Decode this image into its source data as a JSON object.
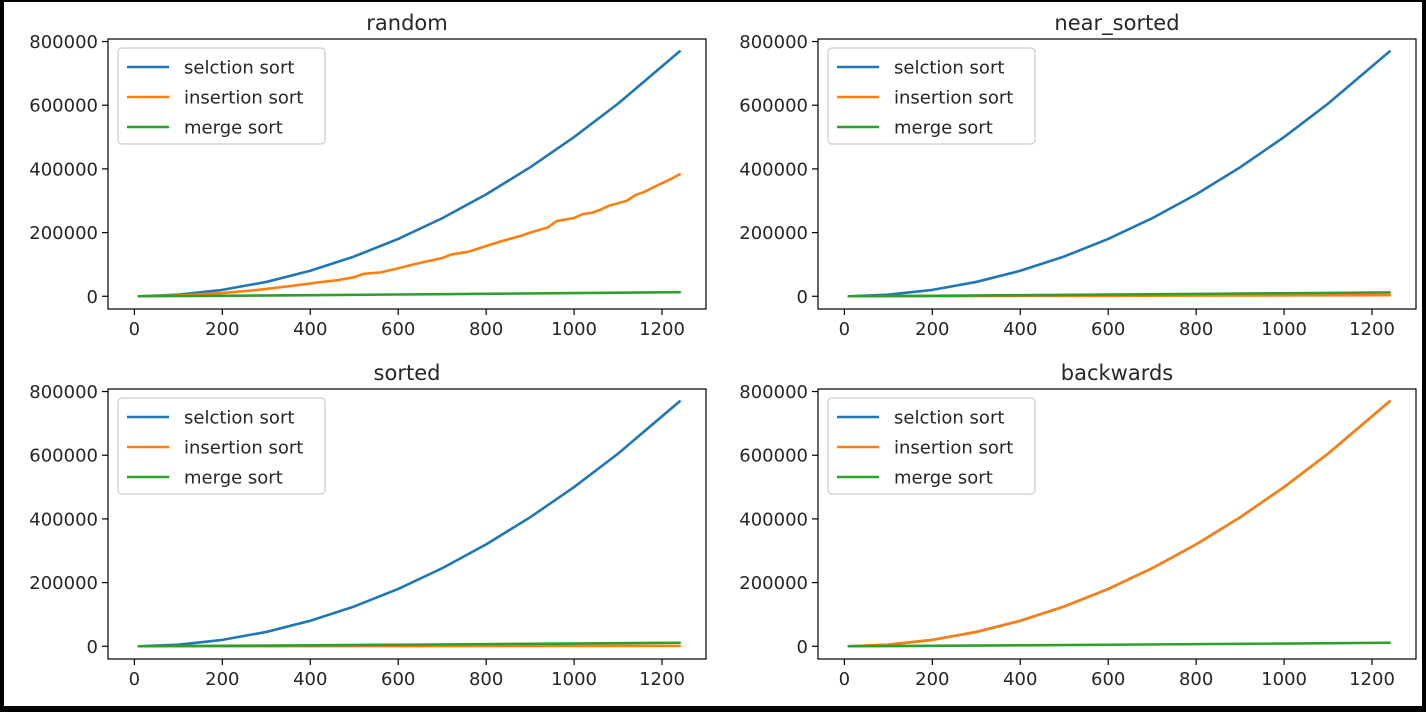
{
  "figure": {
    "layout": "2x2 grid of line charts"
  },
  "chart_data": [
    {
      "type": "line",
      "title": "random",
      "xlabel": "",
      "ylabel": "",
      "xlim": [
        -60,
        1300
      ],
      "ylim": [
        -40000,
        808000
      ],
      "xticks": [
        0,
        200,
        400,
        600,
        800,
        1000,
        1200
      ],
      "yticks": [
        0,
        200000,
        400000,
        600000,
        800000
      ],
      "legend": {
        "placement": "upper-left"
      },
      "grid": false,
      "series": [
        {
          "name": "selction sort",
          "color": "#1f77b4",
          "x": [
            10,
            100,
            200,
            300,
            400,
            500,
            600,
            700,
            800,
            900,
            1000,
            1100,
            1240
          ],
          "y": [
            50,
            5000,
            20000,
            45000,
            80000,
            125000,
            180000,
            245000,
            320000,
            405000,
            500000,
            605000,
            769000
          ]
        },
        {
          "name": "insertion sort",
          "color": "#ff7f0e",
          "x": [
            10,
            100,
            200,
            260,
            300,
            360,
            400,
            420,
            460,
            500,
            520,
            560,
            600,
            620,
            660,
            700,
            720,
            760,
            800,
            840,
            880,
            900,
            940,
            960,
            1000,
            1020,
            1040,
            1060,
            1080,
            1100,
            1120,
            1140,
            1160,
            1180,
            1200,
            1220,
            1240
          ],
          "y": [
            50,
            2500,
            10000,
            17000,
            23000,
            33000,
            40000,
            44000,
            50000,
            60000,
            70000,
            75000,
            88000,
            95000,
            108000,
            120000,
            131000,
            140000,
            158000,
            175000,
            190000,
            200000,
            216000,
            236000,
            246000,
            258000,
            262000,
            272000,
            285000,
            292000,
            300000,
            318000,
            328000,
            342000,
            355000,
            368000,
            383000
          ]
        },
        {
          "name": "merge sort",
          "color": "#2ca02c",
          "x": [
            10,
            200,
            400,
            600,
            800,
            1000,
            1240
          ],
          "y": [
            30,
            1500,
            3500,
            5500,
            7700,
            9900,
            12700
          ]
        }
      ]
    },
    {
      "type": "line",
      "title": "near_sorted",
      "xlabel": "",
      "ylabel": "",
      "xlim": [
        -60,
        1300
      ],
      "ylim": [
        -40000,
        808000
      ],
      "xticks": [
        0,
        200,
        400,
        600,
        800,
        1000,
        1200
      ],
      "yticks": [
        0,
        200000,
        400000,
        600000,
        800000
      ],
      "legend": {
        "placement": "upper-left"
      },
      "grid": false,
      "series": [
        {
          "name": "selction sort",
          "color": "#1f77b4",
          "x": [
            10,
            100,
            200,
            300,
            400,
            500,
            600,
            700,
            800,
            900,
            1000,
            1100,
            1240
          ],
          "y": [
            50,
            5000,
            20000,
            45000,
            80000,
            125000,
            180000,
            245000,
            320000,
            405000,
            500000,
            605000,
            769000
          ]
        },
        {
          "name": "insertion sort",
          "color": "#ff7f0e",
          "x": [
            10,
            400,
            800,
            1240
          ],
          "y": [
            20,
            1000,
            2200,
            3500
          ]
        },
        {
          "name": "merge sort",
          "color": "#2ca02c",
          "x": [
            10,
            200,
            400,
            600,
            800,
            1000,
            1240
          ],
          "y": [
            30,
            1400,
            3300,
            5300,
            7400,
            9500,
            12000
          ]
        }
      ]
    },
    {
      "type": "line",
      "title": "sorted",
      "xlabel": "",
      "ylabel": "",
      "xlim": [
        -60,
        1300
      ],
      "ylim": [
        -40000,
        808000
      ],
      "xticks": [
        0,
        200,
        400,
        600,
        800,
        1000,
        1200
      ],
      "yticks": [
        0,
        200000,
        400000,
        600000,
        800000
      ],
      "legend": {
        "placement": "upper-left"
      },
      "grid": false,
      "series": [
        {
          "name": "selction sort",
          "color": "#1f77b4",
          "x": [
            10,
            100,
            200,
            300,
            400,
            500,
            600,
            700,
            800,
            900,
            1000,
            1100,
            1240
          ],
          "y": [
            50,
            5000,
            20000,
            45000,
            80000,
            125000,
            180000,
            245000,
            320000,
            405000,
            500000,
            605000,
            769000
          ]
        },
        {
          "name": "insertion sort",
          "color": "#ff7f0e",
          "x": [
            10,
            600,
            1240
          ],
          "y": [
            10,
            600,
            1240
          ]
        },
        {
          "name": "merge sort",
          "color": "#2ca02c",
          "x": [
            10,
            200,
            400,
            600,
            800,
            1000,
            1240
          ],
          "y": [
            30,
            1300,
            3000,
            4800,
            6700,
            8600,
            11000
          ]
        }
      ]
    },
    {
      "type": "line",
      "title": "backwards",
      "xlabel": "",
      "ylabel": "",
      "xlim": [
        -60,
        1300
      ],
      "ylim": [
        -40000,
        808000
      ],
      "xticks": [
        0,
        200,
        400,
        600,
        800,
        1000,
        1200
      ],
      "yticks": [
        0,
        200000,
        400000,
        600000,
        800000
      ],
      "legend": {
        "placement": "upper-left"
      },
      "grid": false,
      "series": [
        {
          "name": "selction sort",
          "color": "#1f77b4",
          "x": [
            10,
            100,
            200,
            300,
            400,
            500,
            600,
            700,
            800,
            900,
            1000,
            1100,
            1240
          ],
          "y": [
            50,
            5000,
            20000,
            45000,
            80000,
            125000,
            180000,
            245000,
            320000,
            405000,
            500000,
            605000,
            769000
          ]
        },
        {
          "name": "insertion sort",
          "color": "#ff7f0e",
          "x": [
            10,
            100,
            200,
            300,
            400,
            500,
            600,
            700,
            800,
            900,
            1000,
            1100,
            1240
          ],
          "y": [
            50,
            5000,
            20000,
            45000,
            80000,
            125000,
            180000,
            245000,
            320000,
            405000,
            500000,
            605000,
            769000
          ]
        },
        {
          "name": "merge sort",
          "color": "#2ca02c",
          "x": [
            10,
            200,
            400,
            600,
            800,
            1000,
            1240
          ],
          "y": [
            30,
            1300,
            3000,
            4800,
            6700,
            8600,
            11000
          ]
        }
      ]
    }
  ]
}
